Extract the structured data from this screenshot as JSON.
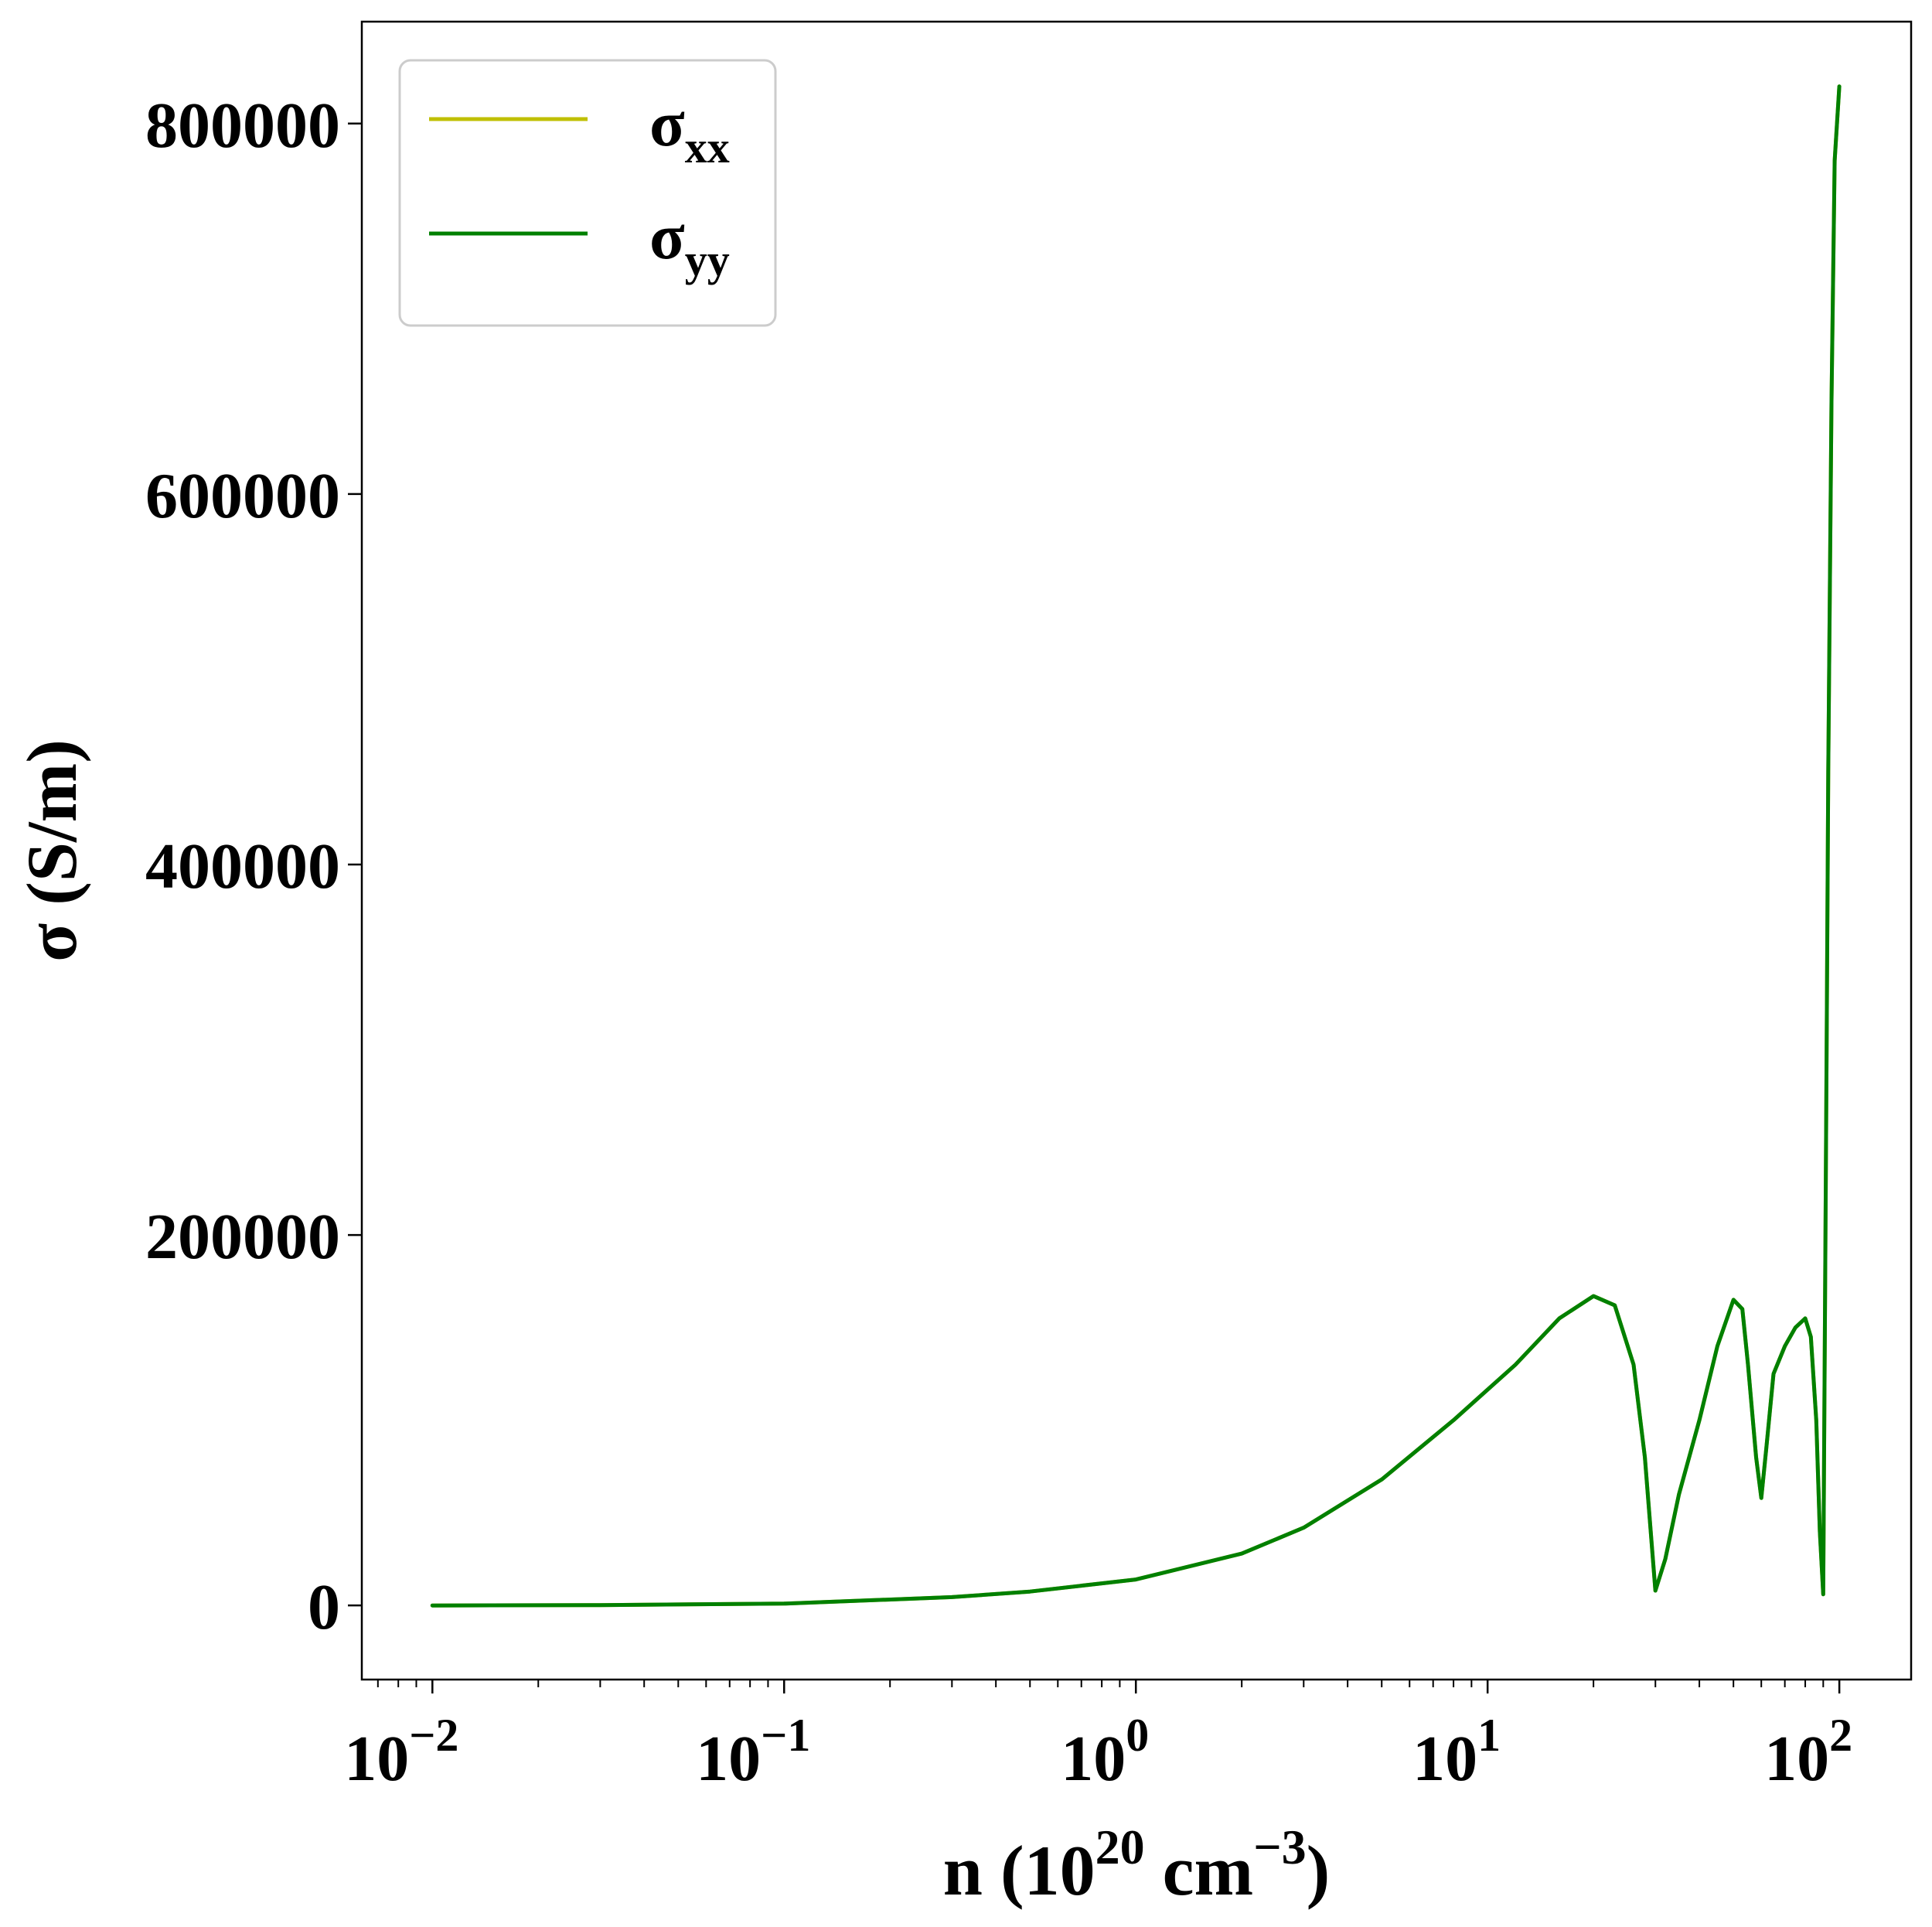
{
  "chart_data": {
    "type": "line",
    "title": "",
    "xlabel": {
      "base": "n (10",
      "exp1": "20",
      "mid": " cm",
      "exp2": "−3",
      "end": ")"
    },
    "ylabel": "σ (S/m)",
    "xscale": "log",
    "xlim": [
      0.0063,
      160
    ],
    "ylim": [
      -40000,
      855000
    ],
    "x_ticks": [
      {
        "value": 0.01,
        "base": "10",
        "exp": "−2"
      },
      {
        "value": 0.1,
        "base": "10",
        "exp": "−1"
      },
      {
        "value": 1,
        "base": "10",
        "exp": "0"
      },
      {
        "value": 10,
        "base": "10",
        "exp": "1"
      },
      {
        "value": 100,
        "base": "10",
        "exp": "2"
      }
    ],
    "y_ticks": [
      {
        "value": 0,
        "label": "0"
      },
      {
        "value": 200000,
        "label": "200000"
      },
      {
        "value": 400000,
        "label": "400000"
      },
      {
        "value": 600000,
        "label": "600000"
      },
      {
        "value": 800000,
        "label": "800000"
      }
    ],
    "grid": false,
    "legend_position": "top-left",
    "series": [
      {
        "name": "σxx",
        "legend_base": "σ",
        "legend_sub": "xx",
        "color": "#bfbf00",
        "x": [
          0.01,
          0.03,
          0.1,
          0.3,
          0.5,
          1,
          2,
          3,
          5,
          8,
          12,
          16,
          20,
          23,
          26,
          28,
          30,
          32,
          35,
          40,
          45,
          50,
          53,
          55,
          58,
          60,
          62,
          65,
          70,
          75,
          80,
          83,
          86,
          88,
          90,
          92,
          93,
          95,
          97,
          100
        ],
        "y": [
          0,
          200,
          1000,
          4500,
          7500,
          14000,
          28000,
          42000,
          68000,
          100000,
          130000,
          155000,
          167000,
          162000,
          130000,
          80000,
          8000,
          25000,
          60000,
          100000,
          140000,
          165000,
          160000,
          130000,
          80000,
          58000,
          85000,
          125000,
          140000,
          150000,
          155000,
          145000,
          100000,
          40000,
          6000,
          300000,
          450000,
          650000,
          780000,
          820000
        ]
      },
      {
        "name": "σyy",
        "legend_base": "σ",
        "legend_sub": "yy",
        "color": "#008000",
        "x": [
          0.01,
          0.03,
          0.1,
          0.3,
          0.5,
          1,
          2,
          3,
          5,
          8,
          12,
          16,
          20,
          23,
          26,
          28,
          30,
          32,
          35,
          40,
          45,
          50,
          53,
          55,
          58,
          60,
          62,
          65,
          70,
          75,
          80,
          83,
          86,
          88,
          90,
          92,
          93,
          95,
          97,
          100
        ],
        "y": [
          0,
          200,
          1000,
          4500,
          7500,
          14000,
          28000,
          42000,
          68000,
          100000,
          130000,
          155000,
          167000,
          162000,
          130000,
          80000,
          8000,
          25000,
          60000,
          100000,
          140000,
          165000,
          160000,
          130000,
          80000,
          58000,
          85000,
          125000,
          140000,
          150000,
          155000,
          145000,
          100000,
          40000,
          6000,
          300000,
          450000,
          650000,
          780000,
          820000
        ]
      }
    ]
  }
}
